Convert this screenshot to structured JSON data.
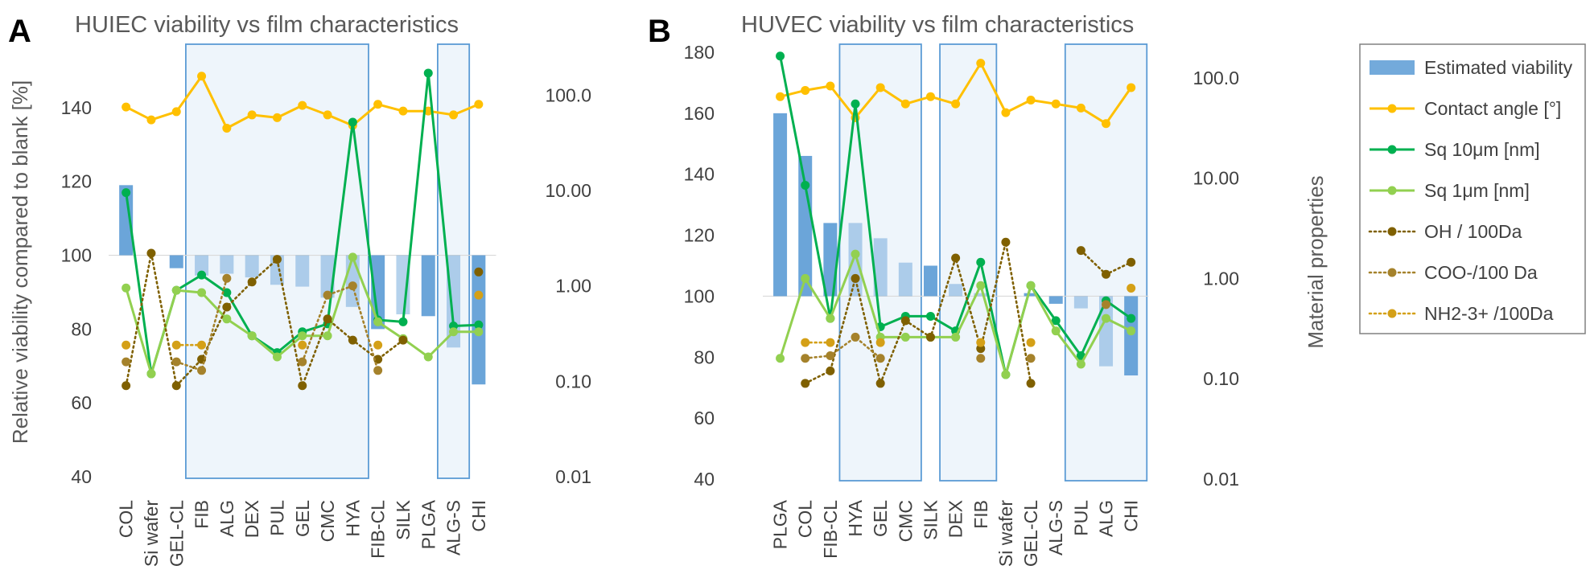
{
  "figure": {
    "letter_a": "A",
    "letter_b": "B",
    "right_ylabel": "Material properties"
  },
  "legend": {
    "items": [
      {
        "label": "Estimated viability",
        "kind": "bar",
        "color": "#5B9BD5"
      },
      {
        "label": "Contact angle [°]",
        "kind": "line",
        "color": "#FFC000"
      },
      {
        "label": "Sq 10μm [nm]",
        "kind": "line",
        "color": "#00B050"
      },
      {
        "label": "Sq 1μm [nm]",
        "kind": "line",
        "color": "#92D050"
      },
      {
        "label": "OH / 100Da",
        "kind": "dotted",
        "color": "#7F6000"
      },
      {
        "label": "COO-/100 Da",
        "kind": "dotted",
        "color": "#A5822B"
      },
      {
        "label": "NH2-3+ /100Da",
        "kind": "dotted",
        "color": "#D4A017"
      }
    ]
  },
  "chart_data": [
    {
      "type": "bar+line",
      "panel": "A",
      "title": "HUIEC viability vs film characteristics",
      "ylabel": "Relative viability compared to blank [%]",
      "ylim": [
        40,
        150
      ],
      "yticks": [
        40,
        60,
        80,
        100,
        120,
        140
      ],
      "y2_scale": "log",
      "y2lim": [
        0.01,
        180
      ],
      "y2ticks": [
        "0.01",
        "0.10",
        "1.00",
        "10.00",
        "100.0"
      ],
      "baseline": 100,
      "categories": [
        "COL",
        "Si wafer",
        "GEL-CL",
        "FIB",
        "ALG",
        "DEX",
        "PUL",
        "GEL",
        "CMC",
        "HYA",
        "FIB-CL",
        "SILK",
        "PLGA",
        "ALG-S",
        "CHI"
      ],
      "highlight_groups": [
        [
          3,
          9
        ],
        [
          13,
          13
        ]
      ],
      "bars": {
        "name": "Estimated viability",
        "values": [
          119,
          null,
          96.5,
          94.5,
          95,
          94,
          92,
          91.5,
          88.5,
          86,
          80,
          84,
          83.5,
          75,
          65
        ],
        "shade": [
          "dark",
          null,
          "dark",
          "light",
          "light",
          "light",
          "light",
          "light",
          "light",
          "light",
          "dark",
          "light",
          "dark",
          "light",
          "dark"
        ]
      },
      "series": [
        {
          "name": "Contact angle [°]",
          "axis": "right",
          "values": [
            75,
            55,
            67,
            158,
            45,
            62,
            58,
            78,
            62,
            48,
            80,
            68,
            68,
            62,
            80
          ]
        },
        {
          "name": "Sq 10μm [nm]",
          "axis": "right",
          "values": [
            9.5,
            0.12,
            0.9,
            1.3,
            0.85,
            0.3,
            0.2,
            0.33,
            0.4,
            52,
            0.44,
            0.42,
            170,
            0.38,
            0.39
          ]
        },
        {
          "name": "Sq 1μm [nm]",
          "axis": "right",
          "values": [
            0.95,
            0.12,
            0.9,
            0.85,
            0.45,
            0.3,
            0.18,
            0.3,
            0.3,
            2.0,
            0.42,
            0.28,
            0.18,
            0.33,
            0.33
          ]
        },
        {
          "name": "OH / 100Da",
          "axis": "right",
          "dotted": true,
          "values": [
            0.09,
            2.2,
            0.09,
            0.17,
            0.6,
            1.1,
            1.9,
            0.09,
            0.45,
            0.27,
            0.17,
            0.27,
            null,
            null,
            1.4
          ]
        },
        {
          "name": "COO-/100 Da",
          "axis": "right",
          "dotted": true,
          "values": [
            0.16,
            null,
            0.16,
            0.13,
            1.2,
            null,
            null,
            0.16,
            0.8,
            1.0,
            0.13,
            null,
            null,
            null,
            null
          ]
        },
        {
          "name": "NH2-3+ /100Da",
          "axis": "right",
          "dotted": true,
          "values": [
            0.24,
            null,
            0.24,
            0.24,
            null,
            null,
            null,
            0.24,
            null,
            null,
            0.24,
            null,
            null,
            null,
            0.8
          ]
        }
      ]
    },
    {
      "type": "bar+line",
      "panel": "B",
      "title": "HUVEC viability vs film characteristics",
      "ylim": [
        40,
        180
      ],
      "yticks": [
        40,
        60,
        80,
        100,
        120,
        140,
        160,
        180
      ],
      "y2_scale": "log",
      "y2lim": [
        0.01,
        180
      ],
      "y2ticks": [
        "0.01",
        "0.10",
        "1.00",
        "10.00",
        "100.0"
      ],
      "y2label": "Material properties",
      "baseline": 100,
      "categories": [
        "PLGA",
        "COL",
        "FIB-CL",
        "HYA",
        "GEL",
        "CMC",
        "SILK",
        "DEX",
        "FIB",
        "Si wafer",
        "GEL-CL",
        "ALG-S",
        "PUL",
        "ALG",
        "CHI"
      ],
      "highlight_groups": [
        [
          3,
          5
        ],
        [
          7,
          8
        ],
        [
          12,
          14
        ]
      ],
      "bars": {
        "name": "Estimated viability",
        "values": [
          160,
          146,
          124,
          124,
          119,
          111,
          110,
          104,
          101,
          null,
          101,
          97.5,
          96,
          77,
          74
        ],
        "shade": [
          "dark",
          "dark",
          "dark",
          "light",
          "light",
          "light",
          "dark",
          "light",
          "light",
          null,
          "dark",
          "dark",
          "light",
          "light",
          "dark"
        ]
      },
      "series": [
        {
          "name": "Contact angle [°]",
          "axis": "right",
          "values": [
            65,
            75,
            83,
            40,
            80,
            55,
            65,
            55,
            140,
            45,
            60,
            55,
            50,
            35,
            80
          ]
        },
        {
          "name": "Sq 10μm [nm]",
          "axis": "right",
          "values": [
            165,
            8.5,
            0.4,
            55,
            0.33,
            0.42,
            0.42,
            0.3,
            1.45,
            0.11,
            0.85,
            0.38,
            0.17,
            0.6,
            0.4
          ]
        },
        {
          "name": "Sq 1μm [nm]",
          "axis": "right",
          "values": [
            0.16,
            1.0,
            0.4,
            1.75,
            0.26,
            0.26,
            0.26,
            0.26,
            0.85,
            0.11,
            0.85,
            0.3,
            0.14,
            0.4,
            0.3
          ]
        },
        {
          "name": "OH / 100Da",
          "axis": "right",
          "dotted": true,
          "values": [
            null,
            0.09,
            0.12,
            1.0,
            0.09,
            0.38,
            0.26,
            1.6,
            0.2,
            2.3,
            0.09,
            null,
            1.9,
            1.1,
            1.45
          ]
        },
        {
          "name": "COO-/100 Da",
          "axis": "right",
          "dotted": true,
          "values": [
            null,
            0.16,
            0.17,
            0.26,
            0.16,
            null,
            null,
            null,
            0.16,
            null,
            0.16,
            null,
            null,
            0.55,
            null
          ]
        },
        {
          "name": "NH2-3+ /100Da",
          "axis": "right",
          "dotted": true,
          "values": [
            null,
            0.23,
            0.23,
            null,
            0.23,
            null,
            null,
            null,
            0.23,
            null,
            0.23,
            null,
            null,
            null,
            0.8
          ]
        }
      ]
    }
  ]
}
